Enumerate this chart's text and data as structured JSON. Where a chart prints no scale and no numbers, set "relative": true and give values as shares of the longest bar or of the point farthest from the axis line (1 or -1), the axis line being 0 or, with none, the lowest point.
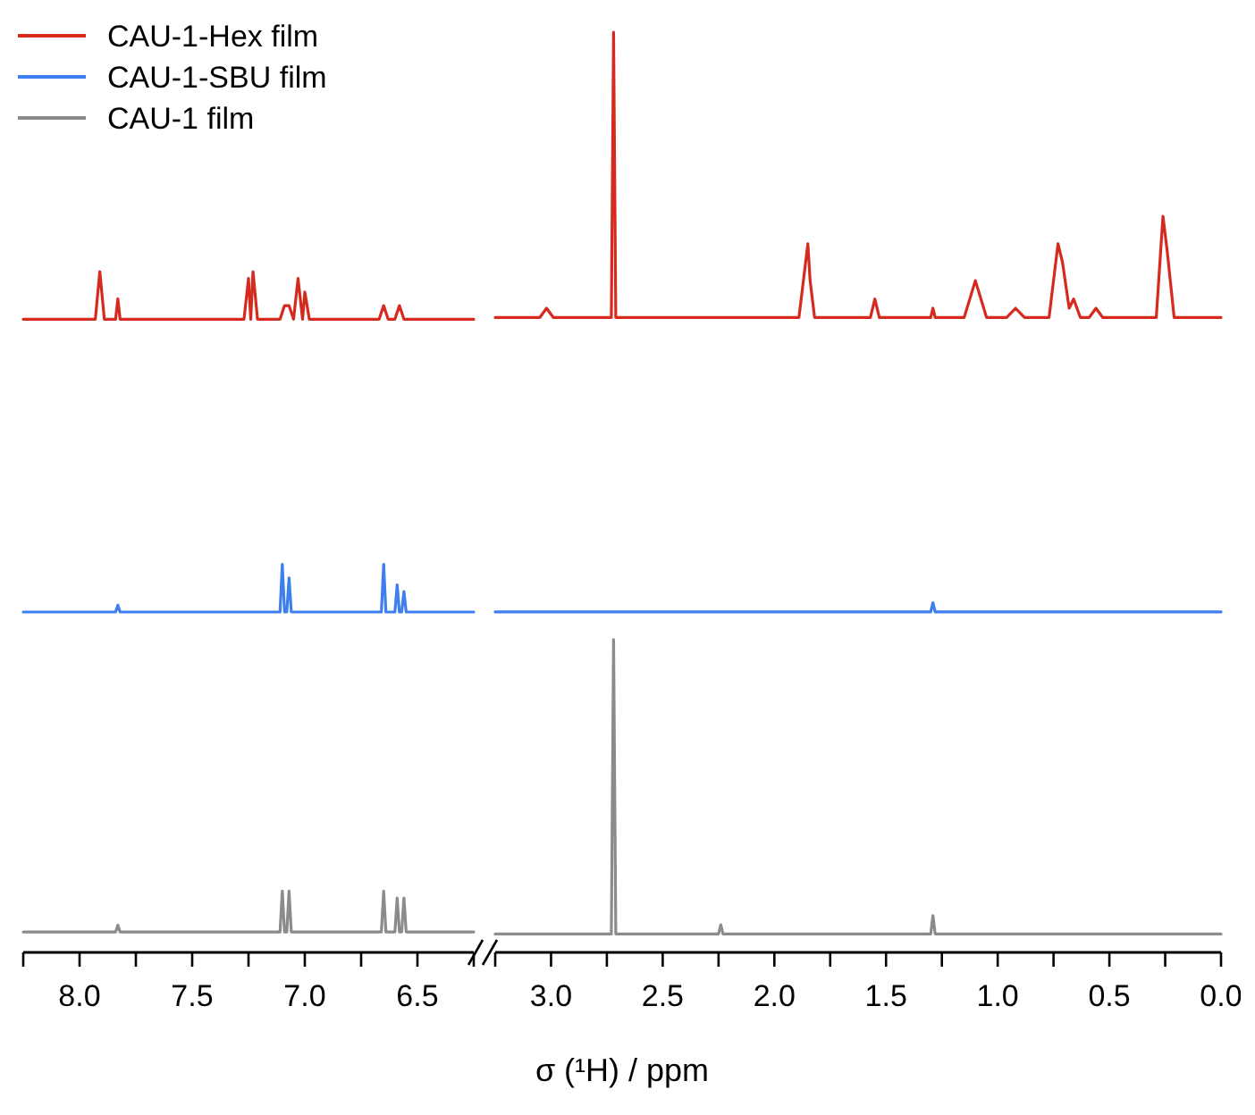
{
  "chart_data": [
    {
      "type": "line",
      "relative": true,
      "xlim": [
        8.25,
        6.25
      ],
      "xticks": [
        {
          "value": 8.25,
          "label": null
        },
        {
          "value": 8,
          "label": "8.0"
        },
        {
          "value": 7.75,
          "label": null
        },
        7.5,
        {
          "value": 7.25,
          "label": null
        },
        {
          "value": 7,
          "label": "7.0"
        },
        {
          "value": 6.75,
          "label": null
        },
        6.5,
        {
          "value": 6.25,
          "label": null
        }
      ],
      "legend": "top left",
      "marker": "none",
      "line_style": "solid",
      "series": [
        {
          "name": "CAU-1-Hex film",
          "color": "#d62a1e",
          "x": [
            8.25,
            7.93,
            7.91,
            7.89,
            7.84,
            7.83,
            7.82,
            7.27,
            7.25,
            7.24,
            7.23,
            7.21,
            7.11,
            7.09,
            7.07,
            7.05,
            7.03,
            7.01,
            7.0,
            6.98,
            6.67,
            6.65,
            6.63,
            6.6,
            6.58,
            6.56,
            6.25
          ],
          "values": [
            0.93,
            0.93,
            1,
            0.93,
            0.93,
            0.96,
            0.93,
            0.93,
            0.99,
            0.93,
            1,
            0.93,
            0.93,
            0.95,
            0.95,
            0.93,
            0.99,
            0.93,
            0.97,
            0.93,
            0.93,
            0.95,
            0.93,
            0.93,
            0.95,
            0.93,
            0.93
          ]
        },
        {
          "name": "CAU-1-SBU film",
          "color": "#3d7fef",
          "x": [
            8.25,
            7.84,
            7.83,
            7.82,
            7.11,
            7.1,
            7.09,
            7.08,
            7.07,
            7.06,
            6.66,
            6.65,
            6.64,
            6.6,
            6.59,
            6.58,
            6.57,
            6.56,
            6.55,
            6.25
          ],
          "values": [
            0.5,
            0.5,
            0.51,
            0.5,
            0.5,
            0.57,
            0.5,
            0.5,
            0.55,
            0.5,
            0.5,
            0.57,
            0.5,
            0.5,
            0.54,
            0.5,
            0.5,
            0.53,
            0.5,
            0.5
          ]
        },
        {
          "name": "CAU-1 film",
          "color": "#8a8a8f",
          "x": [
            8.25,
            7.84,
            7.83,
            7.82,
            7.11,
            7.1,
            7.09,
            7.08,
            7.07,
            7.06,
            6.66,
            6.65,
            6.64,
            6.6,
            6.59,
            6.58,
            6.57,
            6.56,
            6.55,
            6.25
          ],
          "values": [
            0.03,
            0.03,
            0.04,
            0.03,
            0.03,
            0.09,
            0.03,
            0.03,
            0.09,
            0.03,
            0.03,
            0.09,
            0.03,
            0.03,
            0.08,
            0.03,
            0.03,
            0.08,
            0.03,
            0.03
          ]
        }
      ]
    },
    {
      "type": "line",
      "relative": true,
      "xlabel": "σ (¹H) / ppm",
      "xlim": [
        3.25,
        0
      ],
      "xticks": [
        {
          "value": 3.25,
          "label": null
        },
        {
          "value": 3,
          "label": "3.0"
        },
        {
          "value": 2.75,
          "label": null
        },
        2.5,
        {
          "value": 2.25,
          "label": null
        },
        {
          "value": 2,
          "label": "2.0"
        },
        {
          "value": 1.75,
          "label": null
        },
        1.5,
        {
          "value": 1.25,
          "label": null
        },
        {
          "value": 1,
          "label": "1.0"
        },
        {
          "value": 0.75,
          "label": null
        },
        0.5,
        {
          "value": 0.25,
          "label": null
        },
        {
          "value": 0,
          "label": "0.0"
        }
      ],
      "marker": "none",
      "line_style": "solid",
      "series": [
        {
          "color": "#d62a1e",
          "x": [
            3.25,
            3.05,
            3.02,
            2.99,
            2.73,
            2.72,
            2.71,
            1.89,
            1.87,
            1.85,
            1.84,
            1.82,
            1.57,
            1.55,
            1.53,
            1.3,
            1.29,
            1.28,
            1.15,
            1.1,
            1.05,
            0.96,
            0.92,
            0.88,
            0.77,
            0.73,
            0.71,
            0.68,
            0.66,
            0.63,
            0.59,
            0.56,
            0.53,
            0.29,
            0.26,
            0.24,
            0.21,
            0
          ],
          "values": [
            0.69,
            0.69,
            0.7,
            0.69,
            0.69,
            1,
            0.69,
            0.69,
            0.73,
            0.77,
            0.73,
            0.69,
            0.69,
            0.71,
            0.69,
            0.69,
            0.7,
            0.69,
            0.69,
            0.73,
            0.69,
            0.69,
            0.7,
            0.69,
            0.69,
            0.77,
            0.75,
            0.7,
            0.71,
            0.69,
            0.69,
            0.7,
            0.69,
            0.69,
            0.8,
            0.76,
            0.69,
            0.69
          ]
        },
        {
          "color": "#3d7fef",
          "x": [
            3.25,
            1.3,
            1.29,
            1.28,
            0
          ],
          "values": [
            0.37,
            0.37,
            0.38,
            0.37,
            0.37
          ]
        },
        {
          "color": "#8a8a8f",
          "x": [
            3.25,
            2.73,
            2.72,
            2.71,
            2.25,
            2.24,
            2.23,
            1.3,
            1.29,
            1.28,
            0
          ],
          "values": [
            0.02,
            0.02,
            0.34,
            0.02,
            0.02,
            0.03,
            0.02,
            0.02,
            0.04,
            0.02,
            0.02
          ]
        }
      ]
    }
  ]
}
